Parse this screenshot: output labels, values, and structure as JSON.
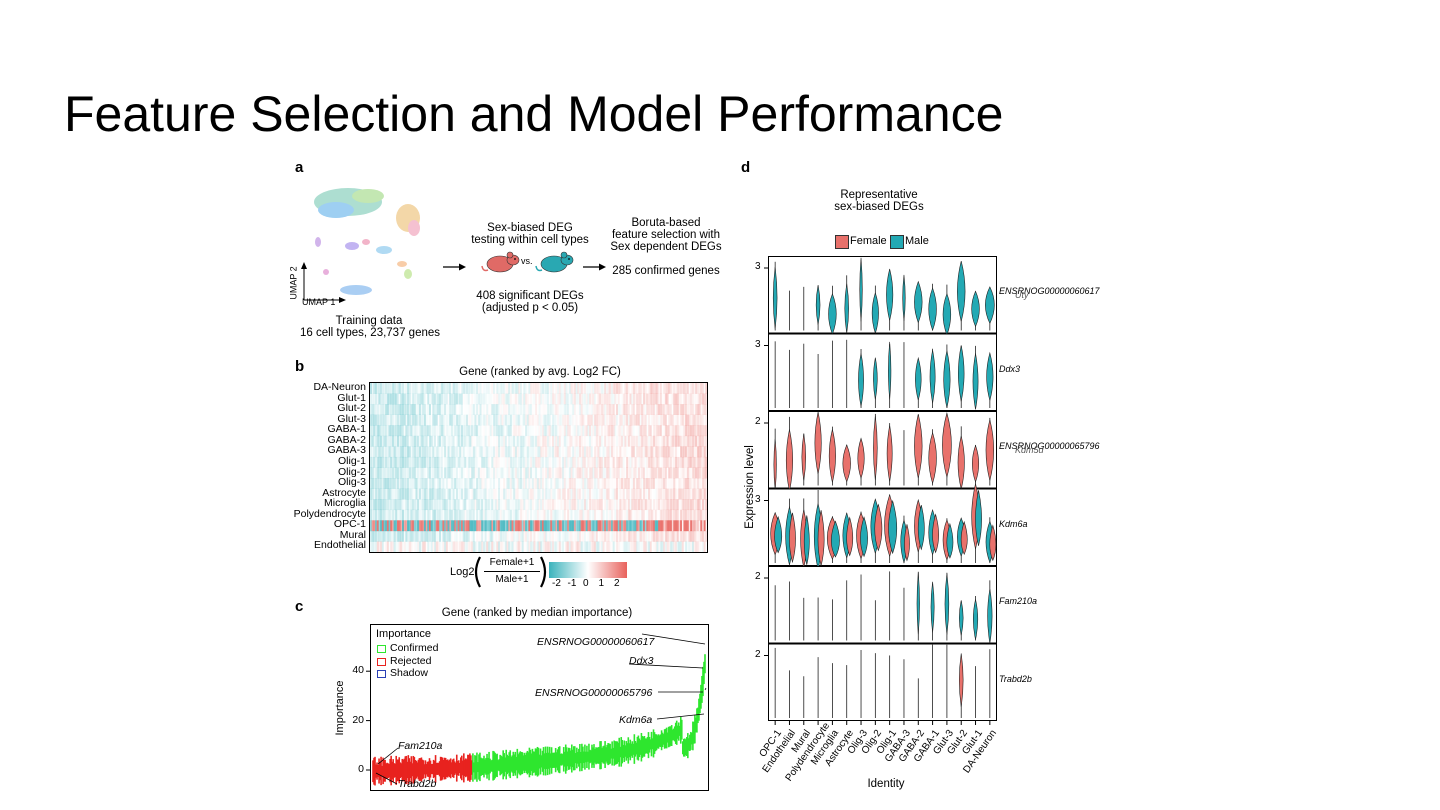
{
  "slide": {
    "title": "Feature Selection and Model Performance"
  },
  "panel_a": {
    "label": "a",
    "umap_axis_y": "UMAP 2",
    "umap_axis_x": "UMAP 1",
    "training_line1": "Training data",
    "training_line2": "16 cell types, 23,737 genes",
    "deg_line1": "Sex-biased DEG",
    "deg_line2": "testing within cell types",
    "vs": "vs.",
    "deg_result1": "408 significant DEGs",
    "deg_result2": "(adjusted p < 0.05)",
    "boruta_line1": "Boruta-based",
    "boruta_line2": "feature selection with",
    "boruta_line3": "Sex dependent DEGs",
    "boruta_result": "285 confirmed genes",
    "colors": {
      "female_mouse": "#e06a66",
      "male_mouse": "#29a8b2"
    }
  },
  "panel_b": {
    "label": "b",
    "title": "Gene (ranked by avg. Log2 FC)",
    "rows": [
      "DA-Neuron",
      "Glut-1",
      "Glut-2",
      "Glut-3",
      "GABA-1",
      "GABA-2",
      "GABA-3",
      "Olig-1",
      "Olig-2",
      "Olig-3",
      "Astrocyte",
      "Microglia",
      "Polydendrocyte",
      "OPC-1",
      "Mural",
      "Endothelial"
    ],
    "legend_prefix": "Log2",
    "legend_num": "Female+1",
    "legend_den": "Male+1",
    "scale_ticks": [
      "-2",
      "-1",
      "0",
      "1",
      "2"
    ],
    "colors": {
      "low": "#3bb3bc",
      "mid": "#ffffff",
      "high": "#e8625c"
    }
  },
  "panel_c": {
    "label": "c",
    "title": "Gene (ranked by median importance)",
    "legend_title": "Importance",
    "legend_items": [
      {
        "label": "Confirmed",
        "color": "#2ee62e"
      },
      {
        "label": "Rejected",
        "color": "#e8231f"
      },
      {
        "label": "Shadow",
        "color": "#2a3fb5"
      }
    ],
    "ylabel": "Importance",
    "yticks": [
      "0",
      "20",
      "40"
    ],
    "annotations": [
      "ENSRNOG00000060617",
      "Ddx3",
      "ENSRNOG00000065796",
      "Kdm6a",
      "Fam210a",
      "Trabd2b"
    ]
  },
  "panel_d": {
    "label": "d",
    "title1": "Representative",
    "title2": "sex-biased DEGs",
    "legend": [
      {
        "label": "Female",
        "color": "#e8716b"
      },
      {
        "label": "Male",
        "color": "#23a9b4"
      }
    ],
    "ylabel": "Expression level",
    "xlabel": "Identity",
    "x_categories": [
      "OPC-1",
      "Endothelial",
      "Mural",
      "Polydendrocyte",
      "Microglia",
      "Astrocyte",
      "Olig-3",
      "Olig-2",
      "Olig-1",
      "GABA-3",
      "GABA-2",
      "GABA-1",
      "Glut-3",
      "Glut-2",
      "Glut-1",
      "DA-Neuron"
    ],
    "rows": [
      {
        "gene": "ENSRNOG00000060617",
        "overlay": "Uty",
        "ytick": "3"
      },
      {
        "gene": "Ddx3",
        "ytick": "3"
      },
      {
        "gene": "ENSRNOG00000065796",
        "overlay": "Kdm5d",
        "ytick": "2"
      },
      {
        "gene": "Kdm6a",
        "ytick": "3"
      },
      {
        "gene": "Fam210a",
        "ytick": "2"
      },
      {
        "gene": "Trabd2b",
        "ytick": "2"
      }
    ]
  }
}
